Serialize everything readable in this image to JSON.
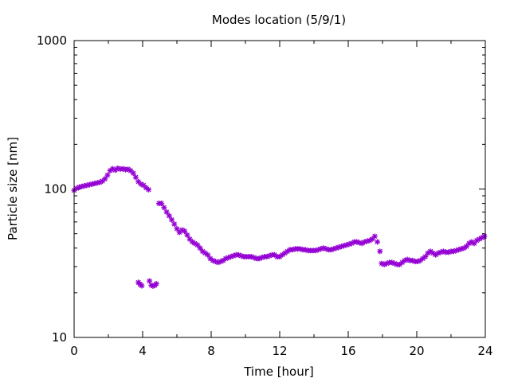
{
  "chart_data": {
    "type": "scatter",
    "title": "Modes location (5/9/1)",
    "xlabel": "Time [hour]",
    "ylabel": "Particle size [nm]",
    "xlim": [
      0,
      24
    ],
    "ylim": [
      10,
      1000
    ],
    "yscale": "log",
    "xticks": [
      0,
      4,
      8,
      12,
      16,
      20,
      24
    ],
    "yticks": [
      10,
      100,
      1000
    ],
    "grid": false,
    "marker": "star",
    "series": [
      {
        "color": "#9400d3",
        "points": [
          [
            0.0,
            98
          ],
          [
            0.15,
            101
          ],
          [
            0.3,
            103
          ],
          [
            0.45,
            104
          ],
          [
            0.6,
            105
          ],
          [
            0.75,
            106
          ],
          [
            0.9,
            107
          ],
          [
            1.05,
            108
          ],
          [
            1.2,
            109
          ],
          [
            1.35,
            110
          ],
          [
            1.5,
            111
          ],
          [
            1.65,
            113
          ],
          [
            1.8,
            117
          ],
          [
            1.95,
            124
          ],
          [
            2.1,
            133
          ],
          [
            2.25,
            137
          ],
          [
            2.4,
            134
          ],
          [
            2.55,
            138
          ],
          [
            2.7,
            136
          ],
          [
            2.85,
            137
          ],
          [
            3.0,
            135
          ],
          [
            3.15,
            136
          ],
          [
            3.3,
            133
          ],
          [
            3.45,
            128
          ],
          [
            3.6,
            120
          ],
          [
            3.75,
            112
          ],
          [
            3.9,
            108
          ],
          [
            4.05,
            106
          ],
          [
            4.2,
            102
          ],
          [
            4.35,
            99
          ],
          [
            4.95,
            80
          ],
          [
            5.1,
            80
          ],
          [
            5.25,
            75
          ],
          [
            5.4,
            70
          ],
          [
            5.55,
            66
          ],
          [
            5.7,
            62
          ],
          [
            5.85,
            58
          ],
          [
            6.0,
            54
          ],
          [
            6.15,
            51
          ],
          [
            6.3,
            53
          ],
          [
            6.45,
            52
          ],
          [
            6.6,
            49
          ],
          [
            6.75,
            46
          ],
          [
            6.9,
            44
          ],
          [
            7.05,
            43
          ],
          [
            7.2,
            42
          ],
          [
            7.35,
            40
          ],
          [
            7.5,
            38
          ],
          [
            7.65,
            37
          ],
          [
            7.8,
            36
          ],
          [
            7.95,
            34
          ],
          [
            8.1,
            33
          ],
          [
            8.25,
            32.5
          ],
          [
            8.4,
            32
          ],
          [
            8.55,
            32.5
          ],
          [
            8.7,
            33
          ],
          [
            8.85,
            34
          ],
          [
            9.0,
            34.5
          ],
          [
            9.15,
            35
          ],
          [
            9.3,
            35.5
          ],
          [
            9.45,
            36
          ],
          [
            9.6,
            36
          ],
          [
            9.75,
            35.5
          ],
          [
            9.9,
            35
          ],
          [
            10.05,
            35
          ],
          [
            10.2,
            35
          ],
          [
            10.35,
            35
          ],
          [
            10.5,
            34.5
          ],
          [
            10.65,
            34
          ],
          [
            10.8,
            34
          ],
          [
            10.95,
            34.5
          ],
          [
            11.1,
            35
          ],
          [
            11.25,
            35
          ],
          [
            11.4,
            35.5
          ],
          [
            11.55,
            36
          ],
          [
            11.7,
            36
          ],
          [
            11.85,
            35
          ],
          [
            12.0,
            35
          ],
          [
            12.15,
            36
          ],
          [
            12.3,
            37
          ],
          [
            12.45,
            38
          ],
          [
            12.6,
            39
          ],
          [
            12.75,
            39
          ],
          [
            12.9,
            39.5
          ],
          [
            13.05,
            39.5
          ],
          [
            13.2,
            39.5
          ],
          [
            13.35,
            39
          ],
          [
            13.5,
            39
          ],
          [
            13.65,
            38.5
          ],
          [
            13.8,
            38.5
          ],
          [
            13.95,
            38.5
          ],
          [
            14.1,
            38.5
          ],
          [
            14.25,
            39
          ],
          [
            14.4,
            39.5
          ],
          [
            14.55,
            40
          ],
          [
            14.7,
            39.5
          ],
          [
            14.85,
            39
          ],
          [
            15.0,
            39
          ],
          [
            15.15,
            39.5
          ],
          [
            15.3,
            40
          ],
          [
            15.45,
            40.5
          ],
          [
            15.6,
            41
          ],
          [
            15.75,
            41.5
          ],
          [
            15.9,
            42
          ],
          [
            16.05,
            42.5
          ],
          [
            16.2,
            43
          ],
          [
            16.35,
            44
          ],
          [
            16.5,
            44
          ],
          [
            16.65,
            43.5
          ],
          [
            16.8,
            43
          ],
          [
            16.95,
            44
          ],
          [
            17.1,
            44.5
          ],
          [
            17.25,
            45
          ],
          [
            17.4,
            46
          ],
          [
            17.55,
            48
          ],
          [
            17.7,
            44
          ],
          [
            17.85,
            38
          ],
          [
            17.95,
            31.5
          ],
          [
            18.1,
            31
          ],
          [
            18.25,
            31.5
          ],
          [
            18.4,
            32
          ],
          [
            18.55,
            32
          ],
          [
            18.7,
            31.5
          ],
          [
            18.85,
            31
          ],
          [
            19.0,
            31
          ],
          [
            19.15,
            32
          ],
          [
            19.3,
            33
          ],
          [
            19.45,
            33.5
          ],
          [
            19.6,
            33
          ],
          [
            19.75,
            33
          ],
          [
            19.9,
            32.5
          ],
          [
            20.05,
            32.5
          ],
          [
            20.2,
            33
          ],
          [
            20.35,
            34
          ],
          [
            20.5,
            35
          ],
          [
            20.65,
            37
          ],
          [
            20.8,
            38
          ],
          [
            20.95,
            37
          ],
          [
            21.1,
            36
          ],
          [
            21.25,
            37
          ],
          [
            21.4,
            37.5
          ],
          [
            21.55,
            38
          ],
          [
            21.7,
            37.5
          ],
          [
            21.85,
            37.5
          ],
          [
            22.0,
            38
          ],
          [
            22.15,
            38
          ],
          [
            22.3,
            38.5
          ],
          [
            22.45,
            39
          ],
          [
            22.6,
            39.5
          ],
          [
            22.75,
            40
          ],
          [
            22.9,
            41
          ],
          [
            23.05,
            43
          ],
          [
            23.2,
            44
          ],
          [
            23.35,
            43
          ],
          [
            23.5,
            45
          ],
          [
            23.65,
            46
          ],
          [
            23.8,
            47
          ],
          [
            23.95,
            48
          ],
          [
            3.75,
            23.5
          ],
          [
            3.85,
            22.8
          ],
          [
            3.95,
            22.3
          ],
          [
            4.4,
            24
          ],
          [
            4.5,
            22.5
          ],
          [
            4.6,
            22.2
          ],
          [
            4.7,
            22.4
          ],
          [
            4.8,
            23
          ]
        ]
      }
    ]
  }
}
